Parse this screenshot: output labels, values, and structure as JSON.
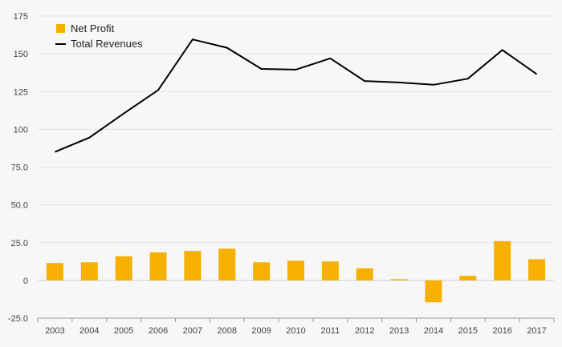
{
  "chart_data": {
    "type": "bar",
    "categories": [
      "2003",
      "2004",
      "2005",
      "2006",
      "2007",
      "2008",
      "2009",
      "2010",
      "2011",
      "2012",
      "2013",
      "2014",
      "2015",
      "2016",
      "2017"
    ],
    "series": [
      {
        "name": "Net Profit",
        "type": "bar",
        "color": "#f5b000",
        "values": [
          11.5,
          12.0,
          16.0,
          18.5,
          19.5,
          21.0,
          12.0,
          13.0,
          12.5,
          8.0,
          0.8,
          -14.5,
          3.0,
          26.0,
          14.0
        ]
      },
      {
        "name": "Total Revenues",
        "type": "line",
        "color": "#000000",
        "values": [
          85.0,
          94.5,
          110.5,
          126.0,
          159.5,
          154.0,
          140.0,
          139.5,
          147.0,
          132.0,
          131.0,
          129.5,
          133.5,
          152.5,
          136.5
        ]
      }
    ],
    "ylim": [
      -25,
      175
    ],
    "yticks": [
      "-25.0",
      "0",
      "25.0",
      "50.0",
      "75.0",
      "100",
      "125",
      "150",
      "175"
    ],
    "ytick_values": [
      -25,
      0,
      25,
      50,
      75,
      100,
      125,
      150,
      175
    ],
    "grid": true,
    "legend_position": "top-left"
  }
}
